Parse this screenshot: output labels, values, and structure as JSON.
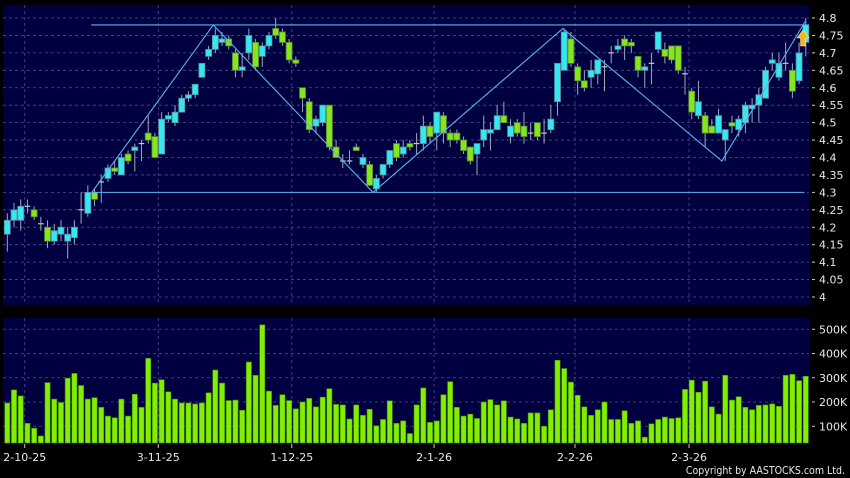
{
  "chart_data": [
    {
      "type": "candlestick",
      "panel": "price",
      "grid": true,
      "ylim": [
        4.0,
        4.8
      ],
      "y_ticks": [
        "4.8",
        "4.75",
        "4.7",
        "4.65",
        "4.6",
        "4.55",
        "4.5",
        "4.45",
        "4.4",
        "4.35",
        "4.3",
        "4.25",
        "4.2",
        "4.15",
        "4.1",
        "4.05",
        "4"
      ],
      "colors": {
        "up": "#33e8f0",
        "down": "#84e61c",
        "background": "#000040",
        "trendline": "#5ab4ee",
        "signal_arrow": "#f5b81c"
      },
      "ohlc": [
        [
          4.18,
          4.24,
          4.13,
          4.22
        ],
        [
          4.22,
          4.27,
          4.2,
          4.25
        ],
        [
          4.22,
          4.28,
          4.19,
          4.26
        ],
        [
          4.26,
          4.28,
          4.24,
          4.26
        ],
        [
          4.25,
          4.26,
          4.22,
          4.23
        ],
        [
          4.21,
          4.23,
          4.19,
          4.21
        ],
        [
          4.2,
          4.22,
          4.14,
          4.16
        ],
        [
          4.16,
          4.21,
          4.15,
          4.19
        ],
        [
          4.18,
          4.22,
          4.16,
          4.2
        ],
        [
          4.16,
          4.2,
          4.11,
          4.18
        ],
        [
          4.17,
          4.22,
          4.15,
          4.2
        ],
        [
          4.25,
          4.3,
          4.21,
          4.25
        ],
        [
          4.24,
          4.32,
          4.23,
          4.3
        ],
        [
          4.3,
          4.31,
          4.26,
          4.28
        ],
        [
          4.33,
          4.35,
          4.27,
          4.33
        ],
        [
          4.34,
          4.38,
          4.33,
          4.37
        ],
        [
          4.37,
          4.39,
          4.35,
          4.36
        ],
        [
          4.35,
          4.41,
          4.35,
          4.4
        ],
        [
          4.41,
          4.42,
          4.38,
          4.39
        ],
        [
          4.42,
          4.44,
          4.36,
          4.43
        ],
        [
          4.44,
          4.45,
          4.39,
          4.44
        ],
        [
          4.47,
          4.52,
          4.44,
          4.45
        ],
        [
          4.46,
          4.47,
          4.4,
          4.4
        ],
        [
          4.41,
          4.53,
          4.41,
          4.51
        ],
        [
          4.51,
          4.53,
          4.5,
          4.52
        ],
        [
          4.5,
          4.55,
          4.49,
          4.53
        ],
        [
          4.53,
          4.58,
          4.53,
          4.57
        ],
        [
          4.57,
          4.59,
          4.56,
          4.58
        ],
        [
          4.58,
          4.61,
          4.57,
          4.61
        ],
        [
          4.63,
          4.67,
          4.63,
          4.67
        ],
        [
          4.69,
          4.72,
          4.68,
          4.71
        ],
        [
          4.71,
          4.77,
          4.7,
          4.75
        ],
        [
          4.73,
          4.76,
          4.72,
          4.74
        ],
        [
          4.74,
          4.75,
          4.71,
          4.72
        ],
        [
          4.7,
          4.71,
          4.63,
          4.65
        ],
        [
          4.65,
          4.7,
          4.63,
          4.66
        ],
        [
          4.7,
          4.77,
          4.68,
          4.75
        ],
        [
          4.73,
          4.74,
          4.65,
          4.66
        ],
        [
          4.69,
          4.73,
          4.66,
          4.72
        ],
        [
          4.72,
          4.76,
          4.71,
          4.75
        ],
        [
          4.77,
          4.8,
          4.74,
          4.75
        ],
        [
          4.76,
          4.77,
          4.72,
          4.73
        ],
        [
          4.73,
          4.74,
          4.67,
          4.68
        ],
        [
          4.68,
          4.69,
          4.66,
          4.67
        ],
        [
          4.6,
          4.6,
          4.53,
          4.57
        ],
        [
          4.56,
          4.57,
          4.47,
          4.48
        ],
        [
          4.49,
          4.52,
          4.47,
          4.51
        ],
        [
          4.5,
          4.55,
          4.49,
          4.55
        ],
        [
          4.55,
          4.55,
          4.42,
          4.43
        ],
        [
          4.43,
          4.45,
          4.4,
          4.4
        ],
        [
          4.39,
          4.41,
          4.37,
          4.39
        ],
        [
          4.39,
          4.42,
          4.38,
          4.39
        ],
        [
          4.43,
          4.44,
          4.42,
          4.42
        ],
        [
          4.38,
          4.41,
          4.37,
          4.4
        ],
        [
          4.38,
          4.39,
          4.32,
          4.32
        ],
        [
          4.31,
          4.35,
          4.3,
          4.34
        ],
        [
          4.35,
          4.38,
          4.34,
          4.38
        ],
        [
          4.38,
          4.42,
          4.37,
          4.42
        ],
        [
          4.44,
          4.45,
          4.39,
          4.4
        ],
        [
          4.41,
          4.45,
          4.4,
          4.43
        ],
        [
          4.44,
          4.45,
          4.42,
          4.43
        ],
        [
          4.44,
          4.47,
          4.41,
          4.44
        ],
        [
          4.44,
          4.52,
          4.42,
          4.49
        ],
        [
          4.49,
          4.5,
          4.44,
          4.46
        ],
        [
          4.47,
          4.53,
          4.42,
          4.53
        ],
        [
          4.52,
          4.53,
          4.44,
          4.47
        ],
        [
          4.47,
          4.48,
          4.43,
          4.45
        ],
        [
          4.47,
          4.48,
          4.44,
          4.45
        ],
        [
          4.45,
          4.46,
          4.41,
          4.42
        ],
        [
          4.43,
          4.43,
          4.38,
          4.39
        ],
        [
          4.41,
          4.44,
          4.35,
          4.44
        ],
        [
          4.45,
          4.52,
          4.43,
          4.48
        ],
        [
          4.47,
          4.5,
          4.42,
          4.48
        ],
        [
          4.48,
          4.55,
          4.48,
          4.52
        ],
        [
          4.52,
          4.56,
          4.5,
          4.5
        ],
        [
          4.46,
          4.51,
          4.44,
          4.49
        ],
        [
          4.5,
          4.51,
          4.46,
          4.47
        ],
        [
          4.49,
          4.53,
          4.44,
          4.46
        ],
        [
          4.47,
          4.5,
          4.45,
          4.47
        ],
        [
          4.5,
          4.5,
          4.45,
          4.46
        ],
        [
          4.47,
          4.51,
          4.44,
          4.47
        ],
        [
          4.48,
          4.55,
          4.47,
          4.51
        ],
        [
          4.56,
          4.67,
          4.52,
          4.67
        ],
        [
          4.65,
          4.77,
          4.65,
          4.76
        ],
        [
          4.74,
          4.76,
          4.66,
          4.67
        ],
        [
          4.66,
          4.67,
          4.58,
          4.62
        ],
        [
          4.62,
          4.65,
          4.59,
          4.6
        ],
        [
          4.63,
          4.68,
          4.6,
          4.65
        ],
        [
          4.64,
          4.68,
          4.61,
          4.68
        ],
        [
          4.66,
          4.68,
          4.59,
          4.66
        ],
        [
          4.7,
          4.72,
          4.67,
          4.7
        ],
        [
          4.71,
          4.74,
          4.7,
          4.72
        ],
        [
          4.74,
          4.75,
          4.68,
          4.72
        ],
        [
          4.73,
          4.74,
          4.7,
          4.72
        ],
        [
          4.69,
          4.69,
          4.63,
          4.65
        ],
        [
          4.65,
          4.67,
          4.6,
          4.66
        ],
        [
          4.67,
          4.7,
          4.61,
          4.67
        ],
        [
          4.71,
          4.76,
          4.7,
          4.76
        ],
        [
          4.71,
          4.73,
          4.67,
          4.69
        ],
        [
          4.72,
          4.72,
          4.67,
          4.68
        ],
        [
          4.72,
          4.72,
          4.64,
          4.65
        ],
        [
          4.64,
          4.66,
          4.58,
          4.64
        ],
        [
          4.59,
          4.6,
          4.51,
          4.53
        ],
        [
          4.52,
          4.62,
          4.51,
          4.56
        ],
        [
          4.52,
          4.53,
          4.43,
          4.47
        ],
        [
          4.49,
          4.51,
          4.47,
          4.47
        ],
        [
          4.47,
          4.54,
          4.47,
          4.52
        ],
        [
          4.45,
          4.48,
          4.39,
          4.48
        ],
        [
          4.5,
          4.52,
          4.47,
          4.49
        ],
        [
          4.48,
          4.52,
          4.46,
          4.51
        ],
        [
          4.5,
          4.56,
          4.47,
          4.55
        ],
        [
          4.54,
          4.57,
          4.5,
          4.55
        ],
        [
          4.55,
          4.6,
          4.5,
          4.58
        ],
        [
          4.57,
          4.66,
          4.57,
          4.65
        ],
        [
          4.67,
          4.7,
          4.65,
          4.68
        ],
        [
          4.63,
          4.7,
          4.62,
          4.67
        ],
        [
          4.67,
          4.73,
          4.65,
          4.67
        ],
        [
          4.65,
          4.67,
          4.57,
          4.59
        ],
        [
          4.62,
          4.73,
          4.61,
          4.7
        ],
        [
          4.73,
          4.8,
          4.69,
          4.78
        ]
      ],
      "trendlines": {
        "horizontal": [
          {
            "price": 4.78,
            "from_bar": 12.5,
            "to_bar": 119.5
          },
          {
            "price": 4.3,
            "from_bar": 12.6,
            "to_bar": 118.8
          }
        ],
        "zigzag": [
          [
            12.6,
            4.3
          ],
          [
            30.7,
            4.78
          ],
          [
            54.5,
            4.3
          ],
          [
            82.8,
            4.77
          ],
          [
            106.5,
            4.39
          ],
          [
            118.9,
            4.79
          ]
        ]
      },
      "signal": {
        "type": "up-arrow",
        "bar": 118.6,
        "price": 4.72
      }
    },
    {
      "type": "bar",
      "panel": "volume",
      "grid": true,
      "unit": "K",
      "y_ticks": [
        "500K",
        "400K",
        "300K",
        "200K",
        "100K"
      ],
      "color": "#80f000",
      "values": [
        196,
        250,
        225,
        112,
        92,
        60,
        280,
        212,
        198,
        298,
        318,
        268,
        212,
        218,
        178,
        142,
        135,
        212,
        142,
        232,
        178,
        380,
        278,
        292,
        242,
        212,
        196,
        196,
        192,
        196,
        238,
        332,
        278,
        206,
        208,
        166,
        365,
        310,
        518,
        245,
        186,
        230,
        206,
        172,
        200,
        215,
        180,
        220,
        255,
        190,
        188,
        130,
        188,
        145,
        170,
        102,
        128,
        205,
        112,
        122,
        70,
        188,
        258,
        116,
        122,
        230,
        284,
        178,
        142,
        150,
        132,
        200,
        210,
        188,
        205,
        138,
        130,
        112,
        155,
        155,
        100,
        168,
        372,
        338,
        282,
        228,
        180,
        145,
        168,
        200,
        128,
        128,
        164,
        112,
        122,
        55,
        110,
        128,
        138,
        132,
        135,
        252,
        290,
        240,
        286,
        180,
        150,
        310,
        208,
        222,
        178,
        168,
        186,
        188,
        192,
        182,
        310,
        314,
        288,
        306
      ]
    }
  ],
  "x_ticks": [
    {
      "label": "2-10-25",
      "bar": 2.6
    },
    {
      "label": "3-11-25",
      "bar": 22.5
    },
    {
      "label": "1-12-25",
      "bar": 42.4
    },
    {
      "label": "2-1-26",
      "bar": 63.6
    },
    {
      "label": "2-2-26",
      "bar": 84.6
    },
    {
      "label": "2-3-26",
      "bar": 101.6
    }
  ],
  "copyright": "Copyright by AASTOCKS.com Ltd."
}
